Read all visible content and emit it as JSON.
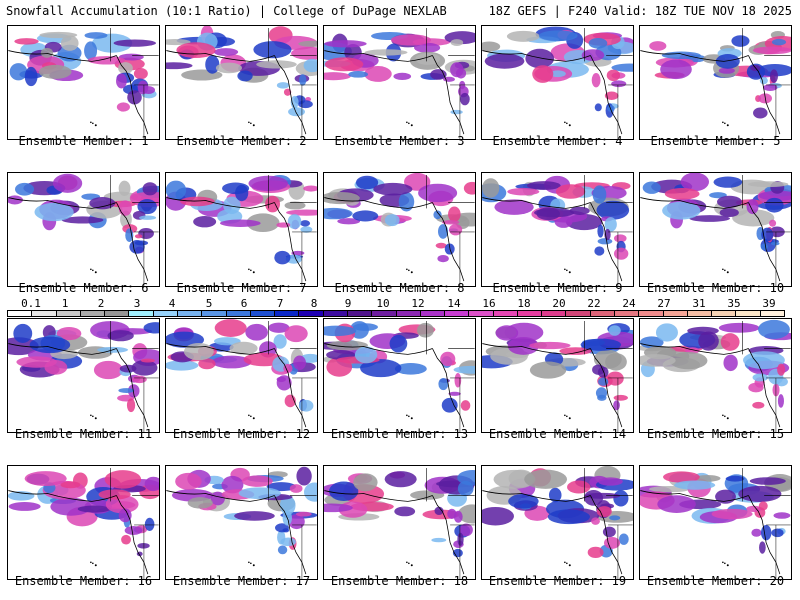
{
  "header": {
    "left_title": "Snowfall Accumulation (10:1 Ratio) | College of DuPage NEXLAB",
    "right_title": "18Z GEFS | F240 Valid: 18Z TUE NOV 18 2025"
  },
  "members": [
    {
      "label": "Ensemble Member: 1"
    },
    {
      "label": "Ensemble Member: 2"
    },
    {
      "label": "Ensemble Member: 3"
    },
    {
      "label": "Ensemble Member: 4"
    },
    {
      "label": "Ensemble Member: 5"
    },
    {
      "label": "Ensemble Member: 6"
    },
    {
      "label": "Ensemble Member: 7"
    },
    {
      "label": "Ensemble Member: 8"
    },
    {
      "label": "Ensemble Member: 9"
    },
    {
      "label": "Ensemble Member: 10"
    },
    {
      "label": "Ensemble Member: 11"
    },
    {
      "label": "Ensemble Member: 12"
    },
    {
      "label": "Ensemble Member: 13"
    },
    {
      "label": "Ensemble Member: 14"
    },
    {
      "label": "Ensemble Member: 15"
    },
    {
      "label": "Ensemble Member: 16"
    },
    {
      "label": "Ensemble Member: 17"
    },
    {
      "label": "Ensemble Member: 18"
    },
    {
      "label": "Ensemble Member: 19"
    },
    {
      "label": "Ensemble Member: 20"
    }
  ],
  "colorbar": {
    "ticks": [
      "0.1",
      "1",
      "2",
      "3",
      "4",
      "5",
      "6",
      "7",
      "8",
      "9",
      "10",
      "12",
      "14",
      "16",
      "18",
      "20",
      "22",
      "24",
      "27",
      "31",
      "35",
      "39"
    ],
    "colors": [
      "#ffffff",
      "#e6e6e6",
      "#c8c8c8",
      "#aaaaaa",
      "#969696",
      "#a0f0ff",
      "#96d2fa",
      "#78b4f0",
      "#5a96e6",
      "#3c78dc",
      "#1e50d2",
      "#0a28c8",
      "#1e00b4",
      "#3c0ca0",
      "#50148c",
      "#6e1ea0",
      "#8c28b4",
      "#aa32c8",
      "#c83cd2",
      "#dc50c8",
      "#e646b4",
      "#e63ca0",
      "#dc3c8c",
      "#d24678",
      "#dc6478",
      "#e67882",
      "#f08c8c",
      "#f5a596",
      "#f5bea5",
      "#f5d2b4",
      "#fae6c8",
      "#fff0dc"
    ]
  }
}
